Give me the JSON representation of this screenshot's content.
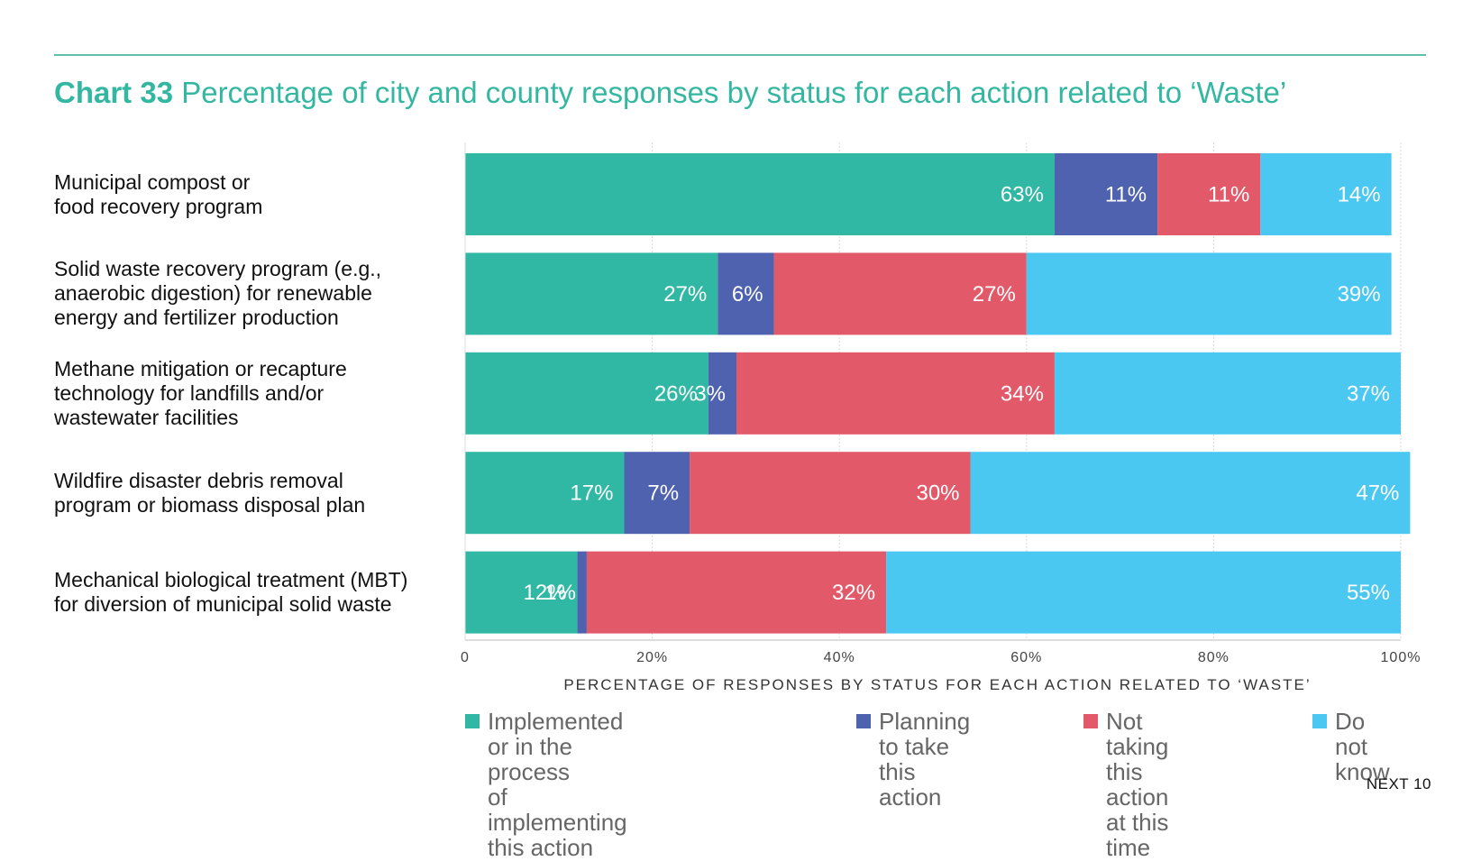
{
  "title": {
    "number": "Chart 33",
    "text": "Percentage of city and county responses by status for each action related to ‘Waste’"
  },
  "footer": "NEXT 10",
  "legend": [
    {
      "label": "Implemented or in the process\nof implementing this action",
      "color": "#31b8a4"
    },
    {
      "label": "Planning to take\nthis action",
      "color": "#4e62b0"
    },
    {
      "label": "Not taking this\naction at this time",
      "color": "#e25a6a"
    },
    {
      "label": "Do not\nknow",
      "color": "#4ac8f2"
    }
  ],
  "chart_data": {
    "type": "bar",
    "orientation": "horizontal",
    "stacked": true,
    "categories": [
      "Municipal compost or\nfood recovery program",
      "Solid waste recovery program (e.g.,\nanaerobic digestion) for renewable\nenergy and fertilizer production",
      "Methane mitigation or recapture\ntechnology for landfills and/or\nwastewater facilities",
      "Wildfire disaster debris removal\nprogram or biomass disposal plan",
      "Mechanical biological treatment (MBT)\nfor diversion of municipal solid waste"
    ],
    "series": [
      {
        "name": "Implemented or in the process of implementing this action",
        "color": "#31b8a4",
        "values": [
          63,
          27,
          26,
          17,
          12
        ]
      },
      {
        "name": "Planning to take this action",
        "color": "#4e62b0",
        "values": [
          11,
          6,
          3,
          7,
          1
        ]
      },
      {
        "name": "Not taking this action at this time",
        "color": "#e25a6a",
        "values": [
          11,
          27,
          34,
          30,
          32
        ]
      },
      {
        "name": "Do not know",
        "color": "#4ac8f2",
        "values": [
          14,
          39,
          37,
          47,
          55
        ]
      }
    ],
    "data_labels": [
      [
        "63%",
        "11%",
        "11%",
        "14%"
      ],
      [
        "27%",
        "6%",
        "27%",
        "39%"
      ],
      [
        "26%",
        "3%",
        "34%",
        "37%"
      ],
      [
        "17%",
        "7%",
        "30%",
        "47%"
      ],
      [
        "12%",
        "1%",
        "32%",
        "55%"
      ]
    ],
    "x_ticks": [
      "0",
      "20%",
      "40%",
      "60%",
      "80%",
      "100%"
    ],
    "x_tick_values": [
      0,
      20,
      40,
      60,
      80,
      100
    ],
    "xlabel": "PERCENTAGE OF RESPONSES BY STATUS FOR EACH ACTION RELATED TO ‘WASTE’",
    "xlim": [
      0,
      100
    ],
    "grid": true,
    "legend_position": "bottom"
  }
}
